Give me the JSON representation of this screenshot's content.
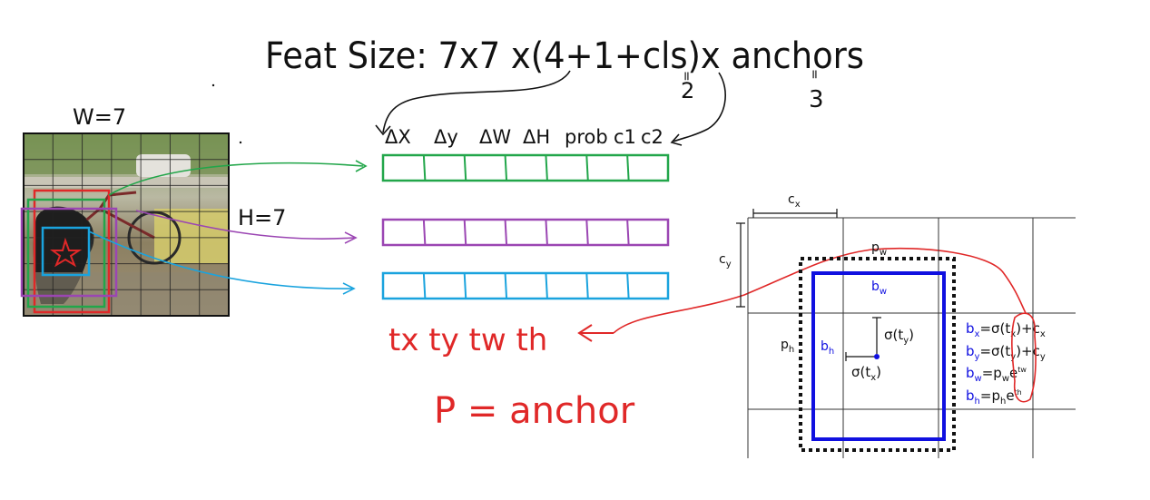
{
  "header": {
    "formula_prefix": "Feat Size: 7x7 x(4+1+cls)x anchors",
    "cls_value": "2",
    "anchors_value": "3",
    "eq_sign": "=",
    "eq_sign_2": "="
  },
  "image_labels": {
    "width_label": "W=7",
    "height_label": "H=7"
  },
  "vector_header": {
    "labels": [
      "ΔX",
      "Δy",
      "ΔW",
      "ΔH",
      "prob",
      "c1",
      "c2"
    ]
  },
  "vectors": [
    {
      "color": "#22a64a",
      "cells": 7
    },
    {
      "color": "#9b46b3",
      "cells": 7
    },
    {
      "color": "#1aa3de",
      "cells": 7
    }
  ],
  "t_params": "tx ty tw th",
  "anchor_note": "P = anchor",
  "yolo_figure": {
    "cx": "c",
    "cx_sub": "x",
    "cy": "c",
    "cy_sub": "y",
    "pw": "p",
    "pw_sub": "w",
    "ph": "p",
    "ph_sub": "h",
    "bw": "b",
    "bw_sub": "w",
    "bh": "b",
    "bh_sub": "h",
    "sigma_ty": "σ(t",
    "sigma_ty_sub": "y",
    "sigma_tx": "σ(t",
    "sigma_tx_sub": "x",
    "close_paren": ")",
    "equations": [
      {
        "lhs": "b",
        "lhs_sub": "x",
        "rhs": "=σ(t",
        "rhs_sub": "x",
        "tail": ")+c",
        "tail_sub": "x"
      },
      {
        "lhs": "b",
        "lhs_sub": "y",
        "rhs": "=σ(t",
        "rhs_sub": "y",
        "tail": ")+c",
        "tail_sub": "y"
      },
      {
        "lhs": "b",
        "lhs_sub": "w",
        "rhs": "=p",
        "rhs_sub": "w",
        "tail": "e",
        "tail_sup": "tw"
      },
      {
        "lhs": "b",
        "lhs_sub": "h",
        "rhs": "=p",
        "rhs_sub": "h",
        "tail": "e",
        "tail_sup": "th"
      }
    ]
  },
  "colors": {
    "red": "#e02828",
    "green": "#22a64a",
    "purple": "#9b46b3",
    "cyan": "#1aa3de",
    "blue": "#1010e0",
    "ink": "#111111"
  }
}
